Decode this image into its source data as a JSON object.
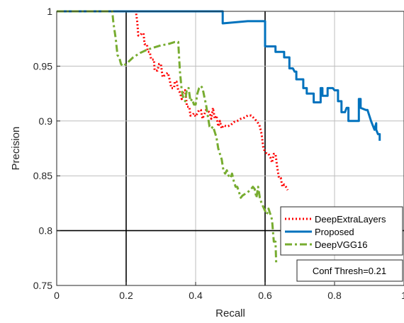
{
  "chart_data": {
    "type": "line",
    "xlabel": "Recall",
    "ylabel": "Precision",
    "xlim": [
      0,
      1
    ],
    "ylim": [
      0.75,
      1
    ],
    "x_ticks": [
      0,
      0.2,
      0.4,
      0.6,
      0.8,
      1
    ],
    "x_tick_labels": [
      "0",
      "0.2",
      "0.4",
      "0.6",
      "0.8",
      "1"
    ],
    "y_ticks": [
      0.75,
      0.8,
      0.85,
      0.9,
      0.95,
      1
    ],
    "y_tick_labels": [
      "0.75",
      "0.8",
      "0.85",
      "0.9",
      "0.95",
      "1"
    ],
    "grid": true,
    "emphasized_gridlines": {
      "x": [
        0.2,
        0.6
      ],
      "y": [
        0.8
      ]
    },
    "legend_position": "bottom-right",
    "annotation": "Conf Thresh=0.21",
    "series": [
      {
        "name": "DeepExtraLayers",
        "color": "#ff0000",
        "style": "dotted",
        "points": [
          [
            0,
            1
          ],
          [
            0.228,
            1
          ],
          [
            0.232,
            0.99
          ],
          [
            0.235,
            0.978
          ],
          [
            0.24,
            0.978
          ],
          [
            0.245,
            0.98
          ],
          [
            0.25,
            0.98
          ],
          [
            0.253,
            0.97
          ],
          [
            0.26,
            0.97
          ],
          [
            0.262,
            0.963
          ],
          [
            0.268,
            0.963
          ],
          [
            0.272,
            0.956
          ],
          [
            0.28,
            0.956
          ],
          [
            0.282,
            0.946
          ],
          [
            0.29,
            0.946
          ],
          [
            0.295,
            0.952
          ],
          [
            0.3,
            0.952
          ],
          [
            0.305,
            0.94
          ],
          [
            0.312,
            0.942
          ],
          [
            0.32,
            0.944
          ],
          [
            0.325,
            0.938
          ],
          [
            0.33,
            0.93
          ],
          [
            0.338,
            0.93
          ],
          [
            0.34,
            0.936
          ],
          [
            0.345,
            0.936
          ],
          [
            0.35,
            0.928
          ],
          [
            0.355,
            0.926
          ],
          [
            0.36,
            0.92
          ],
          [
            0.365,
            0.928
          ],
          [
            0.37,
            0.928
          ],
          [
            0.375,
            0.913
          ],
          [
            0.382,
            0.913
          ],
          [
            0.385,
            0.905
          ],
          [
            0.39,
            0.905
          ],
          [
            0.395,
            0.907
          ],
          [
            0.4,
            0.904
          ],
          [
            0.41,
            0.91
          ],
          [
            0.415,
            0.91
          ],
          [
            0.42,
            0.902
          ],
          [
            0.43,
            0.91
          ],
          [
            0.44,
            0.908
          ],
          [
            0.445,
            0.902
          ],
          [
            0.45,
            0.912
          ],
          [
            0.455,
            0.902
          ],
          [
            0.46,
            0.905
          ],
          [
            0.465,
            0.895
          ],
          [
            0.47,
            0.9
          ],
          [
            0.475,
            0.893
          ],
          [
            0.48,
            0.896
          ],
          [
            0.49,
            0.895
          ],
          [
            0.5,
            0.896
          ],
          [
            0.51,
            0.899
          ],
          [
            0.52,
            0.9
          ],
          [
            0.53,
            0.902
          ],
          [
            0.54,
            0.903
          ],
          [
            0.55,
            0.905
          ],
          [
            0.56,
            0.905
          ],
          [
            0.57,
            0.902
          ],
          [
            0.58,
            0.898
          ],
          [
            0.585,
            0.895
          ],
          [
            0.59,
            0.888
          ],
          [
            0.595,
            0.875
          ],
          [
            0.6,
            0.872
          ],
          [
            0.605,
            0.87
          ],
          [
            0.61,
            0.87
          ],
          [
            0.615,
            0.867
          ],
          [
            0.62,
            0.862
          ],
          [
            0.625,
            0.87
          ],
          [
            0.63,
            0.87
          ],
          [
            0.635,
            0.858
          ],
          [
            0.64,
            0.848
          ],
          [
            0.645,
            0.848
          ],
          [
            0.65,
            0.84
          ],
          [
            0.655,
            0.842
          ],
          [
            0.66,
            0.84
          ],
          [
            0.665,
            0.837
          ]
        ]
      },
      {
        "name": "Proposed",
        "color": "#0072bd",
        "style": "solid",
        "points": [
          [
            0,
            1
          ],
          [
            0.478,
            1
          ],
          [
            0.478,
            0.989
          ],
          [
            0.55,
            0.991
          ],
          [
            0.6,
            0.991
          ],
          [
            0.6,
            0.968
          ],
          [
            0.63,
            0.968
          ],
          [
            0.63,
            0.963
          ],
          [
            0.655,
            0.963
          ],
          [
            0.655,
            0.958
          ],
          [
            0.67,
            0.958
          ],
          [
            0.67,
            0.948
          ],
          [
            0.68,
            0.948
          ],
          [
            0.685,
            0.945
          ],
          [
            0.69,
            0.945
          ],
          [
            0.69,
            0.938
          ],
          [
            0.71,
            0.938
          ],
          [
            0.71,
            0.93
          ],
          [
            0.72,
            0.93
          ],
          [
            0.72,
            0.925
          ],
          [
            0.74,
            0.925
          ],
          [
            0.74,
            0.917
          ],
          [
            0.76,
            0.917
          ],
          [
            0.76,
            0.93
          ],
          [
            0.765,
            0.93
          ],
          [
            0.765,
            0.923
          ],
          [
            0.78,
            0.923
          ],
          [
            0.78,
            0.93
          ],
          [
            0.795,
            0.93
          ],
          [
            0.8,
            0.928
          ],
          [
            0.81,
            0.928
          ],
          [
            0.81,
            0.918
          ],
          [
            0.82,
            0.918
          ],
          [
            0.82,
            0.908
          ],
          [
            0.83,
            0.908
          ],
          [
            0.835,
            0.912
          ],
          [
            0.84,
            0.912
          ],
          [
            0.84,
            0.9
          ],
          [
            0.87,
            0.9
          ],
          [
            0.87,
            0.92
          ],
          [
            0.875,
            0.92
          ],
          [
            0.875,
            0.912
          ],
          [
            0.89,
            0.91
          ],
          [
            0.895,
            0.91
          ],
          [
            0.9,
            0.905
          ],
          [
            0.905,
            0.9
          ],
          [
            0.91,
            0.896
          ],
          [
            0.915,
            0.892
          ],
          [
            0.92,
            0.898
          ],
          [
            0.92,
            0.892
          ],
          [
            0.925,
            0.888
          ],
          [
            0.93,
            0.888
          ],
          [
            0.93,
            0.882
          ]
        ]
      },
      {
        "name": "DeepVGG16",
        "color": "#77ac30",
        "style": "dashdot",
        "points": [
          [
            0,
            1
          ],
          [
            0.16,
            1
          ],
          [
            0.163,
            0.99
          ],
          [
            0.17,
            0.975
          ],
          [
            0.175,
            0.96
          ],
          [
            0.18,
            0.958
          ],
          [
            0.185,
            0.952
          ],
          [
            0.19,
            0.95
          ],
          [
            0.2,
            0.952
          ],
          [
            0.21,
            0.955
          ],
          [
            0.22,
            0.958
          ],
          [
            0.24,
            0.962
          ],
          [
            0.26,
            0.965
          ],
          [
            0.28,
            0.967
          ],
          [
            0.3,
            0.969
          ],
          [
            0.32,
            0.97
          ],
          [
            0.34,
            0.972
          ],
          [
            0.35,
            0.972
          ],
          [
            0.352,
            0.96
          ],
          [
            0.355,
            0.945
          ],
          [
            0.36,
            0.928
          ],
          [
            0.365,
            0.92
          ],
          [
            0.37,
            0.918
          ],
          [
            0.375,
            0.93
          ],
          [
            0.38,
            0.93
          ],
          [
            0.385,
            0.918
          ],
          [
            0.39,
            0.92
          ],
          [
            0.395,
            0.915
          ],
          [
            0.4,
            0.915
          ],
          [
            0.405,
            0.925
          ],
          [
            0.41,
            0.93
          ],
          [
            0.415,
            0.932
          ],
          [
            0.42,
            0.93
          ],
          [
            0.425,
            0.922
          ],
          [
            0.43,
            0.915
          ],
          [
            0.435,
            0.905
          ],
          [
            0.44,
            0.895
          ],
          [
            0.445,
            0.893
          ],
          [
            0.45,
            0.895
          ],
          [
            0.455,
            0.89
          ],
          [
            0.46,
            0.885
          ],
          [
            0.465,
            0.875
          ],
          [
            0.47,
            0.87
          ],
          [
            0.475,
            0.865
          ],
          [
            0.48,
            0.855
          ],
          [
            0.485,
            0.852
          ],
          [
            0.49,
            0.855
          ],
          [
            0.495,
            0.85
          ],
          [
            0.5,
            0.848
          ],
          [
            0.505,
            0.852
          ],
          [
            0.51,
            0.845
          ],
          [
            0.515,
            0.84
          ],
          [
            0.52,
            0.84
          ],
          [
            0.525,
            0.835
          ],
          [
            0.53,
            0.83
          ],
          [
            0.535,
            0.832
          ],
          [
            0.54,
            0.833
          ],
          [
            0.55,
            0.835
          ],
          [
            0.56,
            0.838
          ],
          [
            0.565,
            0.84
          ],
          [
            0.57,
            0.838
          ],
          [
            0.575,
            0.83
          ],
          [
            0.58,
            0.84
          ],
          [
            0.585,
            0.83
          ],
          [
            0.59,
            0.825
          ],
          [
            0.6,
            0.818
          ],
          [
            0.605,
            0.815
          ],
          [
            0.61,
            0.82
          ],
          [
            0.615,
            0.815
          ],
          [
            0.62,
            0.81
          ],
          [
            0.625,
            0.79
          ],
          [
            0.63,
            0.79
          ],
          [
            0.632,
            0.77
          ]
        ]
      }
    ]
  }
}
